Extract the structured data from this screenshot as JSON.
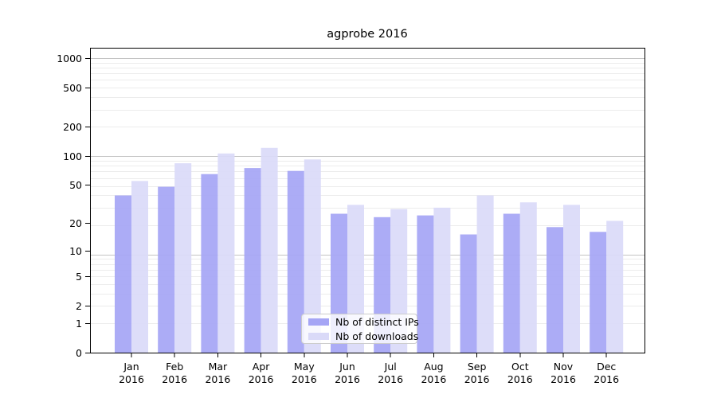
{
  "chart_data": {
    "type": "bar",
    "title": "agprobe 2016",
    "categories": [
      "Jan 2016",
      "Feb 2016",
      "Mar 2016",
      "Apr 2016",
      "May 2016",
      "Jun 2016",
      "Jul 2016",
      "Aug 2016",
      "Sep 2016",
      "Oct 2016",
      "Nov 2016",
      "Dec 2016"
    ],
    "series": [
      {
        "name": "Nb of distinct IPs",
        "color": "#a5a5f5",
        "values": [
          39,
          48,
          65,
          75,
          70,
          25,
          23,
          24,
          15,
          25,
          18,
          16
        ]
      },
      {
        "name": "Nb of downloads",
        "color": "#dadaf8",
        "values": [
          55,
          84,
          106,
          121,
          92,
          31,
          28,
          29,
          39,
          33,
          31,
          21
        ]
      }
    ],
    "yticks": [
      0,
      1,
      2,
      5,
      10,
      20,
      50,
      100,
      200,
      500,
      1000
    ],
    "yscale": "log(1+x)",
    "ylim": [
      0,
      1275
    ],
    "xlabel": "",
    "ylabel": "",
    "grid": true,
    "legend_position": "inside-bottom-center",
    "colors": {
      "axis": "#000000",
      "major_grid": "#c4c4c4",
      "minor_grid": "#ececec",
      "text": "#000000"
    }
  }
}
